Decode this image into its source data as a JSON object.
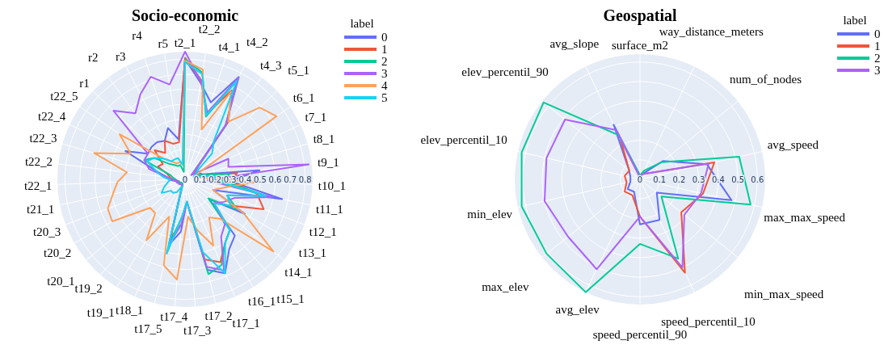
{
  "chart_data": [
    {
      "type": "radar",
      "title": "Socio-economic",
      "legend_title": "label",
      "legend": "top right",
      "grid": true,
      "categories": [
        "t2_1",
        "t2_2",
        "t4_1",
        "t4_2",
        "t4_3",
        "t5_1",
        "t6_1",
        "t7_1",
        "t8_1",
        "t9_1",
        "t10_1",
        "t11_1",
        "t12_1",
        "t13_1",
        "t14_1",
        "t15_1",
        "t16_1",
        "t17_1",
        "t17_2",
        "t17_3",
        "t17_4",
        "t17_5",
        "t18_1",
        "t19_1",
        "t19_2",
        "t20_1",
        "t20_2",
        "t20_3",
        "t21_1",
        "t22_1",
        "t22_2",
        "t22_3",
        "t22_4",
        "t22_5",
        "r1",
        "r2",
        "r3",
        "r4",
        "r5"
      ],
      "ylim": [
        0,
        0.85
      ],
      "yticks": [
        0,
        0.1,
        0.2,
        0.3,
        0.4,
        0.5,
        0.6,
        0.7,
        0.8
      ],
      "series": [
        {
          "name": "0",
          "color": "#636efa",
          "values": [
            0.8,
            0.65,
            0.54,
            0.77,
            0.45,
            0.12,
            0.08,
            0.1,
            0.12,
            0.5,
            0.3,
            0.66,
            0.2,
            0.46,
            0.21,
            0.5,
            0.55,
            0.68,
            0.62,
            0.15,
            0.35,
            0.45,
            0.06,
            0.04,
            0.04,
            0.05,
            0.05,
            0.05,
            0.06,
            0.1,
            0.12,
            0.2,
            0.44,
            0.3,
            0.31,
            0.31,
            0.29,
            0.36,
            0.27
          ]
        },
        {
          "name": "1",
          "color": "#ef553b",
          "values": [
            0.81,
            0.67,
            0.46,
            0.67,
            0.48,
            0.1,
            0.07,
            0.1,
            0.08,
            0.35,
            0.3,
            0.49,
            0.56,
            0.35,
            0.25,
            0.45,
            0.5,
            0.6,
            0.55,
            0.15,
            0.3,
            0.4,
            0.05,
            0.03,
            0.03,
            0.04,
            0.04,
            0.04,
            0.05,
            0.08,
            0.1,
            0.12,
            0.2,
            0.18,
            0.28,
            0.22,
            0.29,
            0.25,
            0.25
          ]
        },
        {
          "name": "2",
          "color": "#00cc96",
          "values": [
            0.8,
            0.72,
            0.44,
            0.74,
            0.45,
            0.1,
            0.06,
            0.1,
            0.1,
            0.3,
            0.25,
            0.56,
            0.3,
            0.4,
            0.2,
            0.45,
            0.5,
            0.62,
            0.65,
            0.15,
            0.25,
            0.45,
            0.04,
            0.03,
            0.03,
            0.04,
            0.04,
            0.04,
            0.05,
            0.06,
            0.08,
            0.1,
            0.3,
            0.25,
            0.15,
            0.12,
            0.1,
            0.1,
            0.05
          ]
        },
        {
          "name": "3",
          "color": "#ab63fa",
          "values": [
            0.85,
            0.66,
            0.47,
            0.76,
            0.45,
            0.1,
            0.05,
            0.32,
            0.3,
            0.83,
            0.15,
            0.59,
            0.35,
            0.3,
            0.25,
            0.4,
            0.45,
            0.66,
            0.6,
            0.15,
            0.3,
            0.45,
            0.05,
            0.04,
            0.04,
            0.05,
            0.05,
            0.06,
            0.05,
            0.08,
            0.12,
            0.25,
            0.3,
            0.3,
            0.66,
            0.55,
            0.64,
            0.72,
            0.64
          ]
        },
        {
          "name": "4",
          "color": "#ffa15a",
          "values": [
            0.79,
            0.74,
            0.35,
            0.66,
            0.48,
            0.69,
            0.74,
            0.1,
            0.06,
            0.1,
            0.47,
            0.27,
            0.2,
            0.45,
            0.76,
            0.35,
            0.3,
            0.48,
            0.35,
            0.25,
            0.67,
            0.59,
            0.27,
            0.48,
            0.3,
            0.3,
            0.56,
            0.55,
            0.49,
            0.45,
            0.39,
            0.63,
            0.4,
            0.53,
            0.2,
            0.15,
            0.12,
            0.12,
            0.1
          ]
        },
        {
          "name": "5",
          "color": "#19d3f3",
          "values": [
            0.78,
            0.71,
            0.45,
            0.74,
            0.32,
            0.25,
            0.1,
            0.08,
            0.06,
            0.2,
            0.2,
            0.55,
            0.3,
            0.35,
            0.25,
            0.45,
            0.5,
            0.68,
            0.5,
            0.15,
            0.25,
            0.51,
            0.05,
            0.1,
            0.12,
            0.12,
            0.18,
            0.15,
            0.12,
            0.1,
            0.15,
            0.2,
            0.28,
            0.25,
            0.2,
            0.15,
            0.15,
            0.15,
            0.1
          ]
        }
      ]
    },
    {
      "type": "radar",
      "title": "Geospatial",
      "legend_title": "label",
      "legend": "top right",
      "grid": true,
      "categories": [
        "surface_m2",
        "way_distance_meters",
        "num_of_nodes",
        "avg_speed",
        "max_max_speed",
        "min_max_speed",
        "speed_percentil_10",
        "speed_percentil_90",
        "avg_elev",
        "max_elev",
        "min_elev",
        "elev_percentil_10",
        "elev_percentil_90",
        "avg_slope"
      ],
      "ylim": [
        0,
        0.64
      ],
      "yticks": [
        0,
        0.1,
        0.2,
        0.3,
        0.4,
        0.5,
        0.6
      ],
      "series": [
        {
          "name": "0",
          "color": "#636efa",
          "values": [
            0.02,
            0.03,
            0.15,
            0.35,
            0.48,
            0.11,
            0.23,
            0.23,
            0.07,
            0.08,
            0.05,
            0.05,
            0.07,
            0.31
          ]
        },
        {
          "name": "1",
          "color": "#ef553b",
          "values": [
            0.01,
            0.03,
            0.05,
            0.39,
            0.33,
            0.27,
            0.53,
            0.19,
            0.09,
            0.1,
            0.07,
            0.08,
            0.07,
            0.23
          ]
        },
        {
          "name": "2",
          "color": "#00cc96",
          "values": [
            0.02,
            0.05,
            0.14,
            0.52,
            0.58,
            0.14,
            0.45,
            0.33,
            0.64,
            0.61,
            0.62,
            0.62,
            0.63,
            0.25
          ]
        },
        {
          "name": "3",
          "color": "#ab63fa",
          "values": [
            0.01,
            0.03,
            0.05,
            0.36,
            0.32,
            0.29,
            0.5,
            0.19,
            0.51,
            0.47,
            0.5,
            0.49,
            0.49,
            0.28
          ]
        }
      ]
    }
  ]
}
